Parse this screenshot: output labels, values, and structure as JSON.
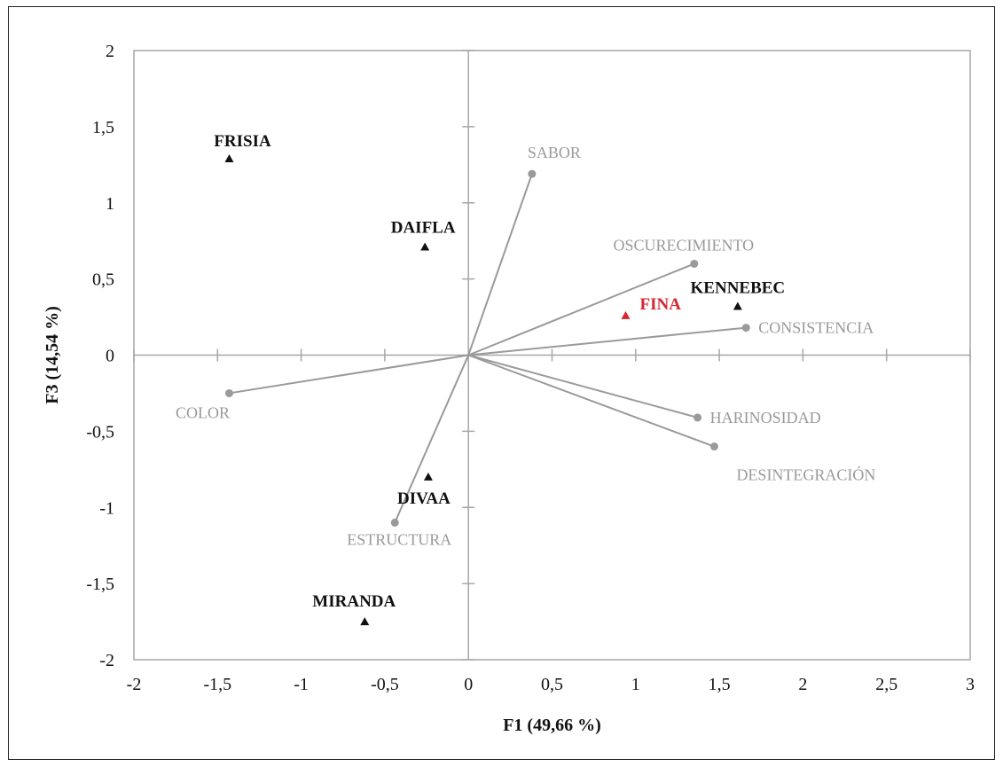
{
  "chart_data": {
    "type": "scatter",
    "title": "",
    "xlabel": "F1 (49,66 %)",
    "ylabel": "F3 (14,54  %)",
    "xlim": [
      -2,
      3
    ],
    "ylim": [
      -2,
      2
    ],
    "x_ticks": [
      -2,
      -1.5,
      -1,
      -0.5,
      0,
      0.5,
      1,
      1.5,
      2,
      2.5,
      3
    ],
    "x_tick_labels": [
      "-2",
      "-1,5",
      "-1",
      "-0,5",
      "0",
      "0,5",
      "1",
      "1,5",
      "2",
      "2,5",
      "3"
    ],
    "y_ticks": [
      -2,
      -1.5,
      -1,
      -0.5,
      0,
      0.5,
      1,
      1.5,
      2
    ],
    "y_tick_labels": [
      "-2",
      "-1,5",
      "-1",
      "-0,5",
      "0",
      "0,5",
      "1",
      "1,5",
      "2"
    ],
    "grid": false,
    "observations": [
      {
        "label": "FRISIA",
        "x": -1.43,
        "y": 1.29,
        "color": "#111111"
      },
      {
        "label": "DAIFLA",
        "x": -0.26,
        "y": 0.71,
        "color": "#111111"
      },
      {
        "label": "KENNEBEC",
        "x": 1.61,
        "y": 0.32,
        "color": "#111111"
      },
      {
        "label": "FINA",
        "x": 0.94,
        "y": 0.26,
        "color": "#d7262f"
      },
      {
        "label": "DIVAA",
        "x": -0.24,
        "y": -0.8,
        "color": "#111111"
      },
      {
        "label": "MIRANDA",
        "x": -0.62,
        "y": -1.75,
        "color": "#111111"
      }
    ],
    "variables": [
      {
        "label": "SABOR",
        "x": 0.38,
        "y": 1.19
      },
      {
        "label": "OSCURECIMIENTO",
        "x": 1.35,
        "y": 0.6
      },
      {
        "label": "CONSISTENCIA",
        "x": 1.66,
        "y": 0.18
      },
      {
        "label": "HARINOSIDAD",
        "x": 1.37,
        "y": -0.41
      },
      {
        "label": "DESINTEGRACIÓN",
        "x": 1.47,
        "y": -0.6
      },
      {
        "label": "ESTRUCTURA",
        "x": -0.44,
        "y": -1.1
      },
      {
        "label": "COLOR",
        "x": -1.43,
        "y": -0.25
      }
    ],
    "colors": {
      "axis": "#a6a6a6",
      "vector": "#9a9a9a",
      "observation": "#111111",
      "highlight": "#d7262f"
    }
  }
}
